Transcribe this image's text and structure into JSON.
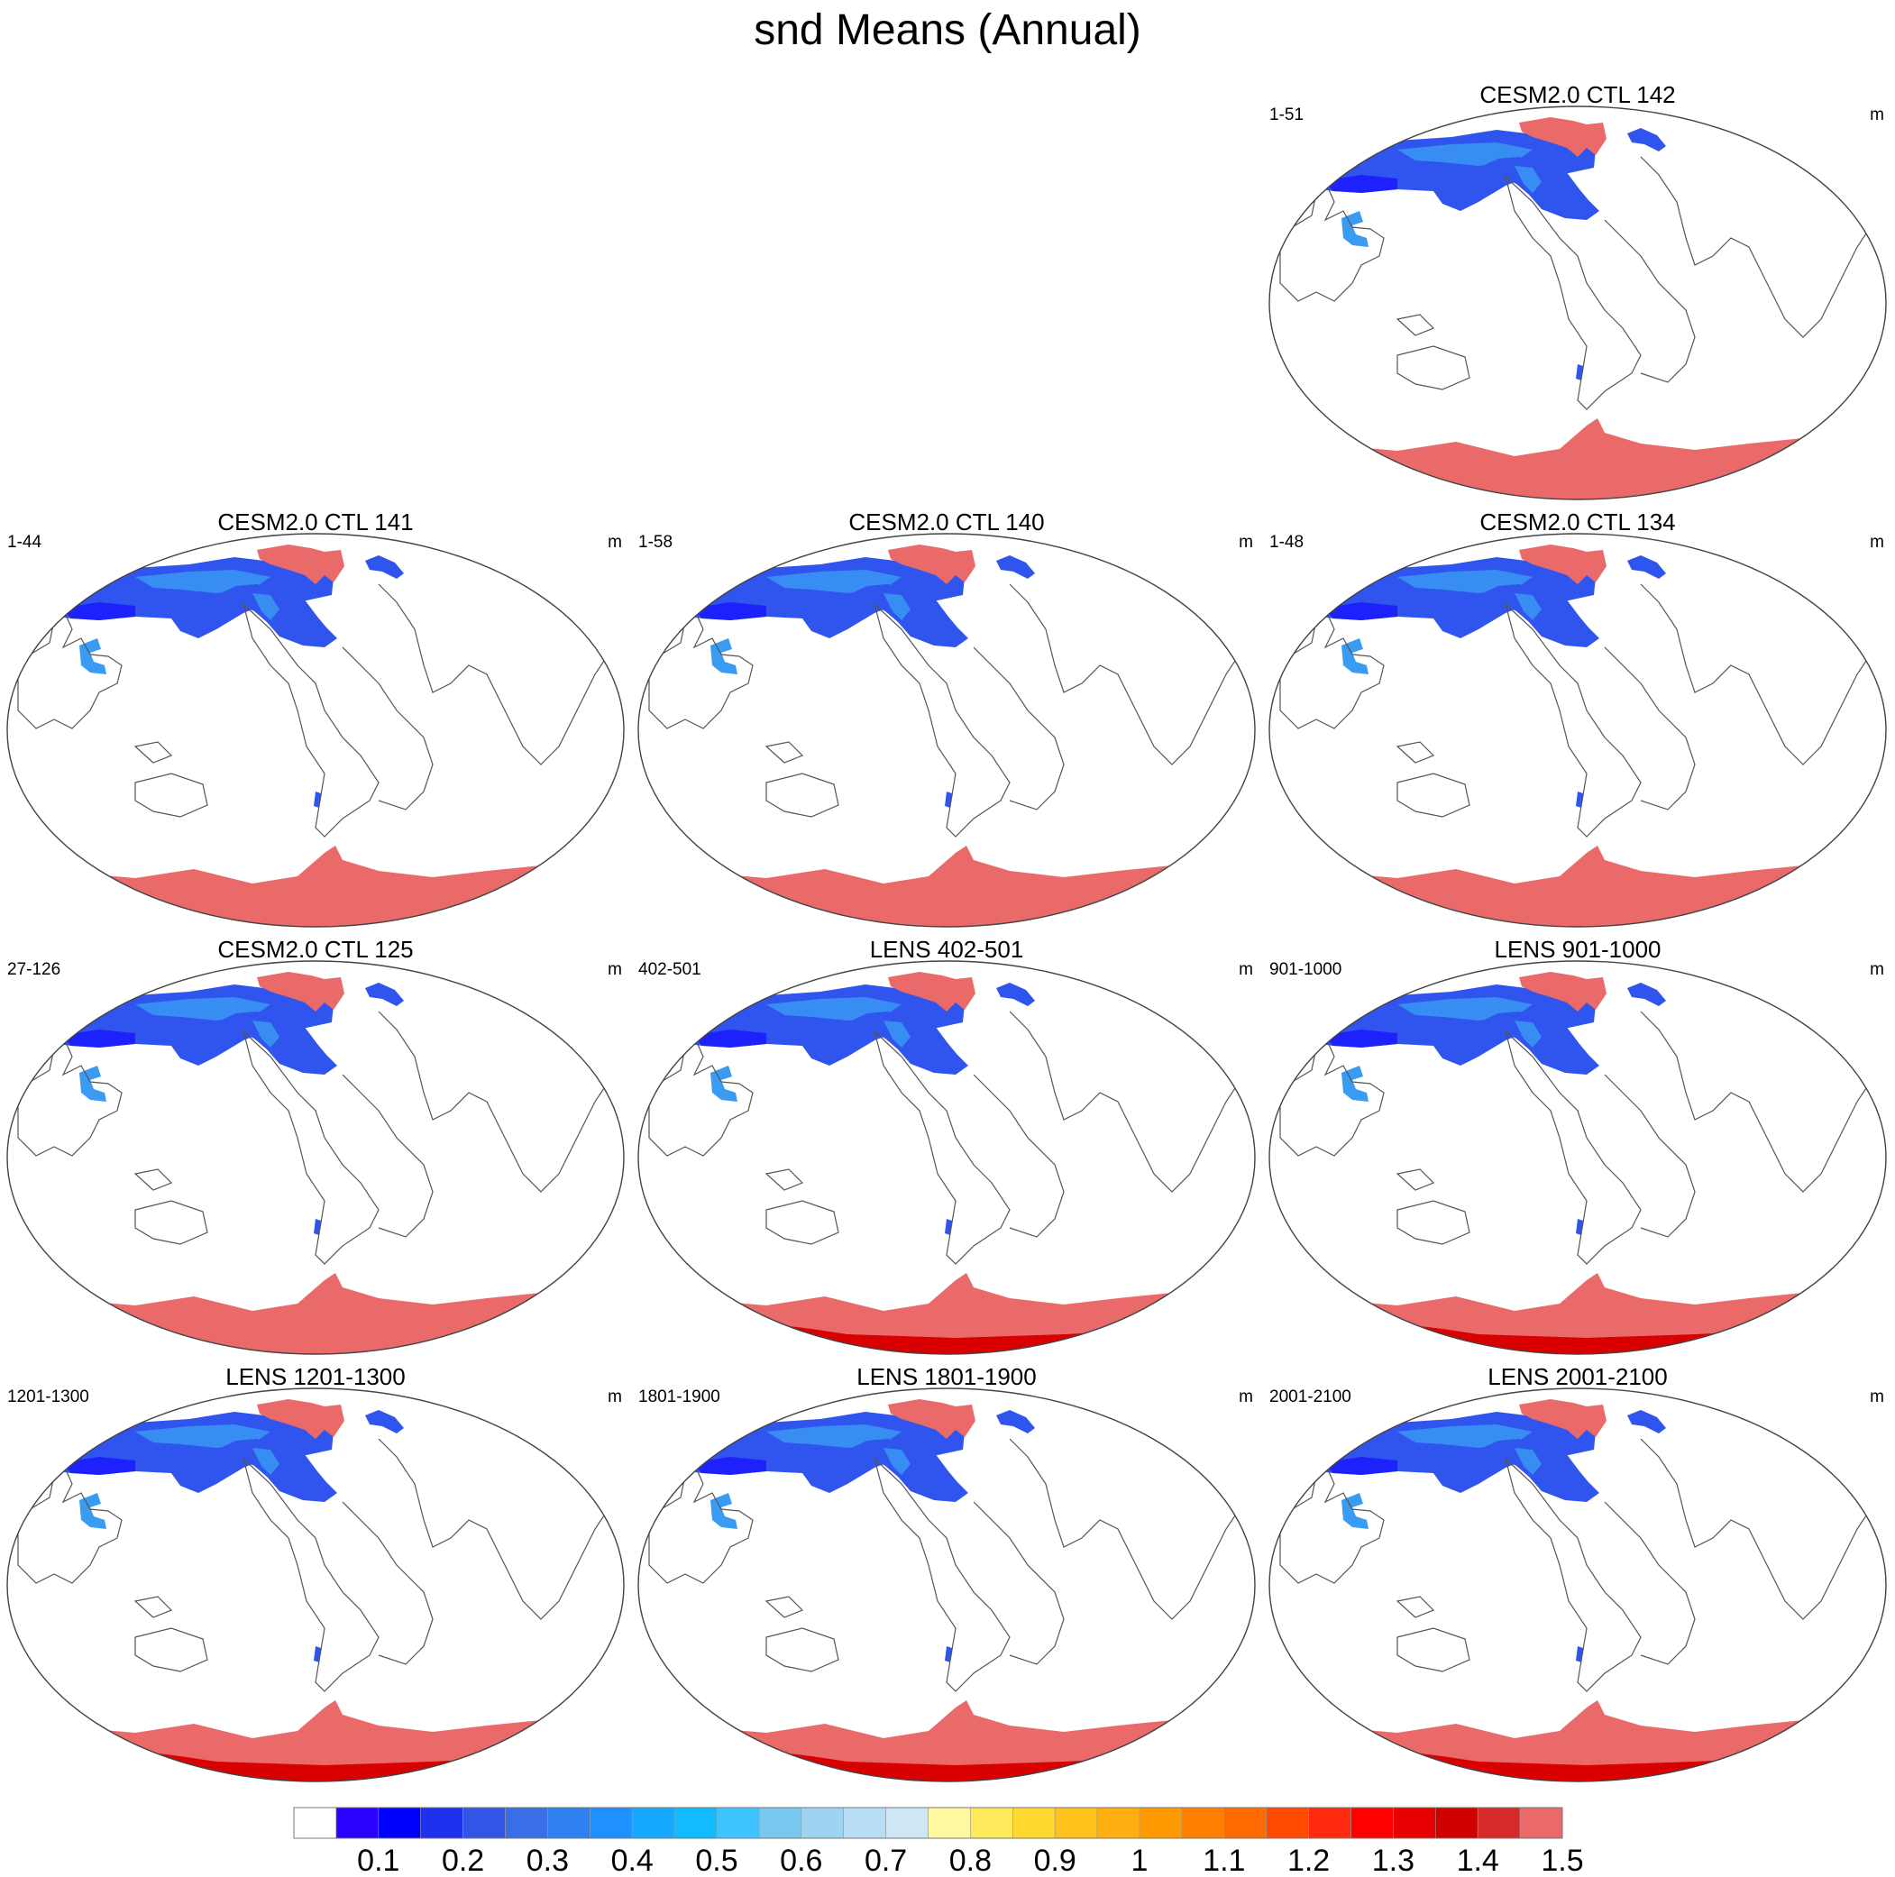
{
  "title": "snd Means (Annual)",
  "panels": [
    {
      "title": "CESM2.0 CTL 142",
      "left": "1-51",
      "right": "m",
      "row": 0,
      "col": 2,
      "antarctic_deep": false
    },
    {
      "title": "CESM2.0 CTL 141",
      "left": "1-44",
      "right": "m",
      "row": 1,
      "col": 0,
      "antarctic_deep": false
    },
    {
      "title": "CESM2.0 CTL 140",
      "left": "1-58",
      "right": "m",
      "row": 1,
      "col": 1,
      "antarctic_deep": false
    },
    {
      "title": "CESM2.0 CTL 134",
      "left": "1-48",
      "right": "m",
      "row": 1,
      "col": 2,
      "antarctic_deep": false
    },
    {
      "title": "CESM2.0 CTL 125",
      "left": "27-126",
      "right": "m",
      "row": 2,
      "col": 0,
      "antarctic_deep": false
    },
    {
      "title": "LENS 402-501",
      "left": "402-501",
      "right": "m",
      "row": 2,
      "col": 1,
      "antarctic_deep": true
    },
    {
      "title": "LENS 901-1000",
      "left": "901-1000",
      "right": "m",
      "row": 2,
      "col": 2,
      "antarctic_deep": true
    },
    {
      "title": "LENS 1201-1300",
      "left": "1201-1300",
      "right": "m",
      "row": 3,
      "col": 0,
      "antarctic_deep": true
    },
    {
      "title": "LENS 1801-1900",
      "left": "1801-1900",
      "right": "m",
      "row": 3,
      "col": 1,
      "antarctic_deep": true
    },
    {
      "title": "LENS 2001-2100",
      "left": "2001-2100",
      "right": "m",
      "row": 3,
      "col": 2,
      "antarctic_deep": true
    }
  ],
  "colorbar": {
    "labels": [
      "0.1",
      "0.2",
      "0.3",
      "0.4",
      "0.5",
      "0.6",
      "0.7",
      "0.8",
      "0.9",
      "1",
      "1.1",
      "1.2",
      "1.3",
      "1.4",
      "1.5"
    ],
    "colors": [
      "#ffffff",
      "#2b00ff",
      "#0000ff",
      "#1f30ee",
      "#3355e5",
      "#3a6ee6",
      "#2f80f0",
      "#1e90ff",
      "#17a8ff",
      "#12baff",
      "#40c4ff",
      "#78c8f0",
      "#9ed4f2",
      "#b8def5",
      "#cfe6f7",
      "#fff8a0",
      "#ffe85a",
      "#ffd830",
      "#ffc21a",
      "#ffb010",
      "#ff9a00",
      "#ff8000",
      "#ff6a00",
      "#ff4a00",
      "#ff2a10",
      "#ff0000",
      "#e80000",
      "#d00000",
      "#d42a2a",
      "#ea6a6a"
    ]
  },
  "map_colors": {
    "glacier": "#ea6a6a",
    "deep": "#d80000",
    "snow_main": "#2f55ee",
    "snow_light": "#3a9bf2",
    "snow_dark": "#1a1aff",
    "coast": "#555555",
    "outline": "#444444"
  }
}
